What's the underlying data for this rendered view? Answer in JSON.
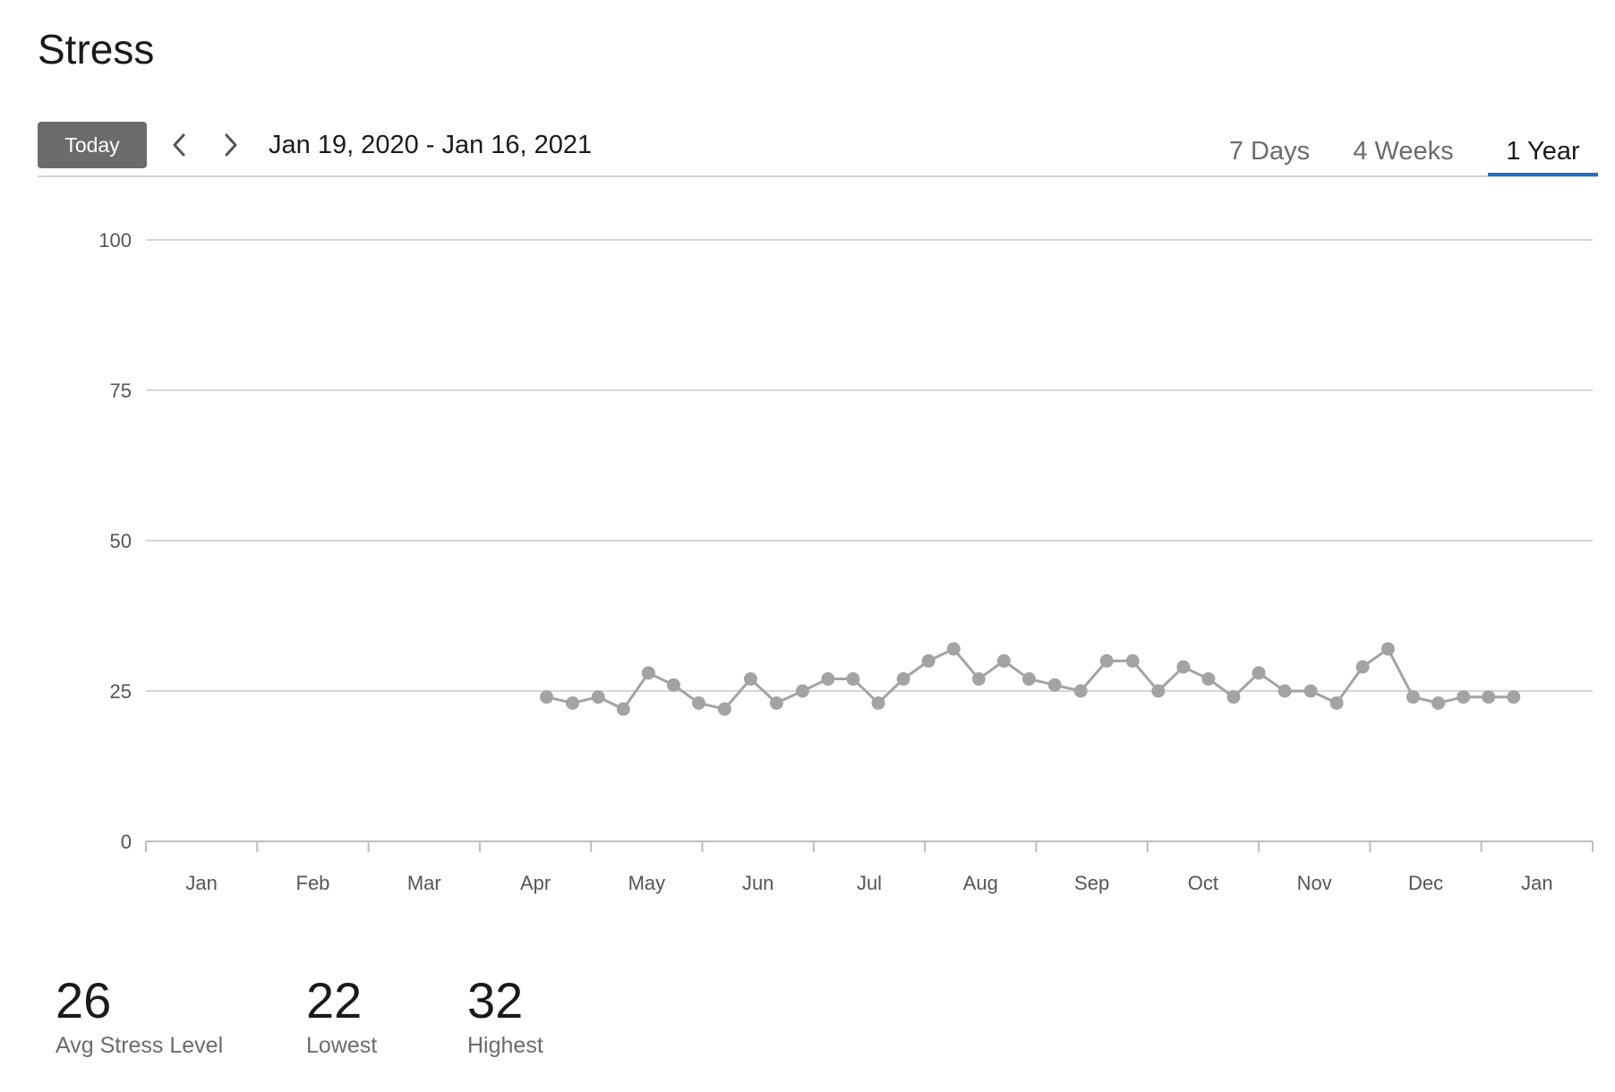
{
  "page": {
    "title": "Stress"
  },
  "toolbar": {
    "today_label": "Today",
    "prev_icon": "chevron-left-icon",
    "next_icon": "chevron-right-icon",
    "date_range": "Jan 19, 2020 - Jan 16, 2021",
    "tabs": [
      {
        "label": "7 Days",
        "active": false
      },
      {
        "label": "4 Weeks",
        "active": false
      },
      {
        "label": "1 Year",
        "active": true
      }
    ],
    "accent_color": "#1f6fc9"
  },
  "chart_data": {
    "type": "line",
    "ylim": [
      0,
      100
    ],
    "y_ticks": [
      0,
      25,
      50,
      75,
      100
    ],
    "x_ticks": [
      "Jan",
      "Feb",
      "Mar",
      "Apr",
      "May",
      "Jun",
      "Jul",
      "Aug",
      "Sep",
      "Oct",
      "Nov",
      "Dec",
      "Jan"
    ],
    "grid": true,
    "line_color": "#a3a3a3",
    "series": [
      {
        "x": [
          "2020-04-19",
          "2020-04-26",
          "2020-05-03",
          "2020-05-10",
          "2020-05-17",
          "2020-05-24",
          "2020-05-31",
          "2020-06-07",
          "2020-06-14",
          "2020-06-21",
          "2020-06-28",
          "2020-07-05",
          "2020-07-12",
          "2020-07-19",
          "2020-07-26",
          "2020-08-02",
          "2020-08-09",
          "2020-08-16",
          "2020-08-23",
          "2020-08-30",
          "2020-09-06",
          "2020-09-13",
          "2020-09-20",
          "2020-09-27",
          "2020-10-04",
          "2020-10-11",
          "2020-10-18",
          "2020-10-25",
          "2020-11-01",
          "2020-11-08",
          "2020-11-15",
          "2020-11-22",
          "2020-11-29",
          "2020-12-06",
          "2020-12-13",
          "2020-12-20",
          "2020-12-27",
          "2021-01-03",
          "2021-01-10"
        ],
        "values": [
          24,
          23,
          24,
          22,
          28,
          26,
          23,
          22,
          27,
          23,
          25,
          27,
          27,
          23,
          27,
          30,
          32,
          27,
          30,
          27,
          26,
          25,
          30,
          30,
          25,
          29,
          27,
          24,
          28,
          25,
          25,
          23,
          29,
          32,
          24,
          23,
          24,
          24,
          24
        ]
      }
    ]
  },
  "stats": {
    "avg": {
      "value": "26",
      "label": "Avg Stress Level"
    },
    "low": {
      "value": "22",
      "label": "Lowest"
    },
    "high": {
      "value": "32",
      "label": "Highest"
    }
  }
}
